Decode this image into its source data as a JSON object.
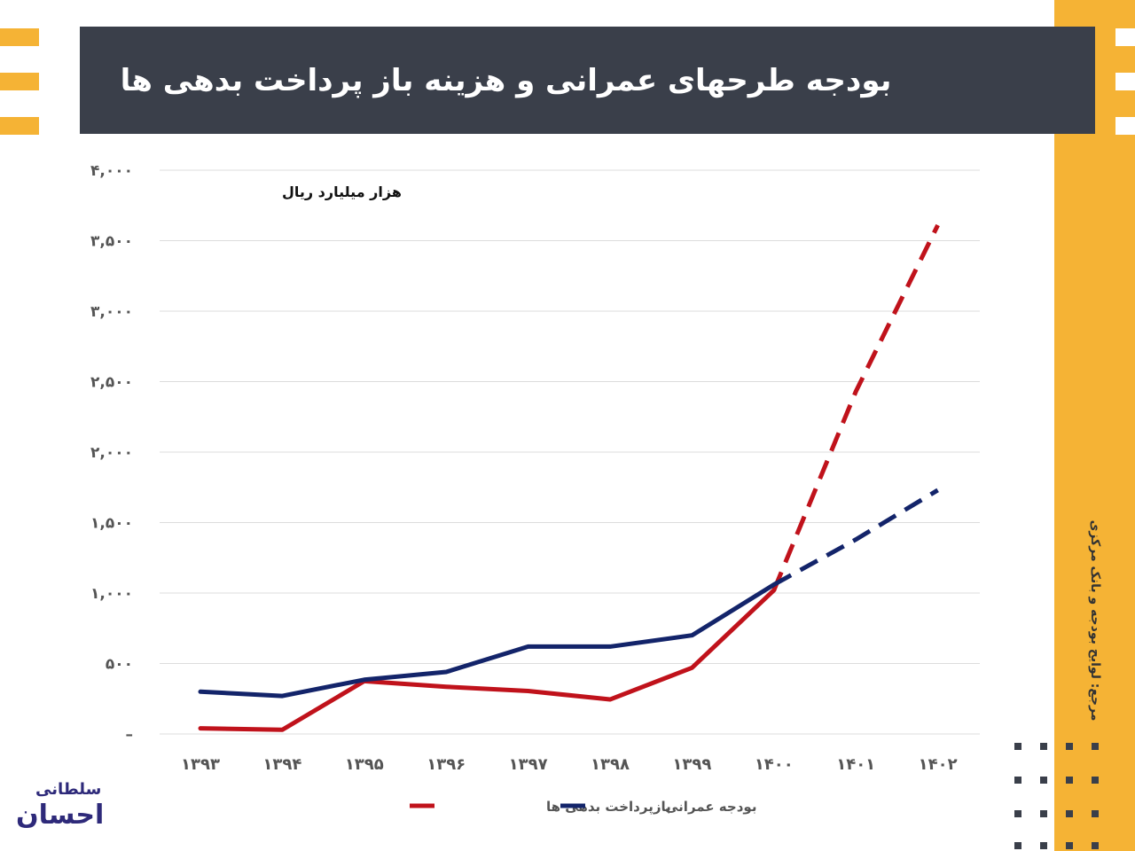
{
  "header": {
    "title": "بودجه طرحهای عمرانی و هزینه باز پرداخت بدهی ها"
  },
  "source": {
    "text": "مرجع: لوایح بودجه و بانک مرکزی"
  },
  "colors": {
    "title_bar": "#3a3f4a",
    "accent": "#f5b335",
    "debt_series": "#c0121b",
    "civil_series": "#13246a",
    "logo": "#2e2a7a"
  },
  "logo": {
    "line1": "سلطانی",
    "line2": "احسان"
  },
  "chart_data": {
    "type": "line",
    "ylabel": "هزار میلیارد ریال",
    "ylim": [
      0,
      4000
    ],
    "y_ticks": [
      0,
      500,
      1000,
      1500,
      2000,
      2500,
      3000,
      3500,
      4000
    ],
    "y_tick_labels": [
      "–",
      "۵۰۰",
      "۱,۰۰۰",
      "۱,۵۰۰",
      "۲,۰۰۰",
      "۲,۵۰۰",
      "۳,۰۰۰",
      "۳,۵۰۰",
      "۴,۰۰۰"
    ],
    "categories": [
      "۱۳۹۳",
      "۱۳۹۴",
      "۱۳۹۵",
      "۱۳۹۶",
      "۱۳۹۷",
      "۱۳۹۸",
      "۱۳۹۹",
      "۱۴۰۰",
      "۱۴۰۱",
      "۱۴۰۲"
    ],
    "grid": true,
    "legend_position": "bottom",
    "series": [
      {
        "name": "بازپرداخت بدهی ها",
        "color": "#c0121b",
        "values": [
          40,
          30,
          375,
          335,
          305,
          245,
          470,
          1020,
          2430,
          3610
        ],
        "dashed_from_index": 7
      },
      {
        "name": "بودجه عمرانی",
        "color": "#13246a",
        "values": [
          300,
          270,
          385,
          440,
          620,
          620,
          700,
          1060,
          1380,
          1730
        ],
        "dashed_from_index": 7
      }
    ]
  }
}
